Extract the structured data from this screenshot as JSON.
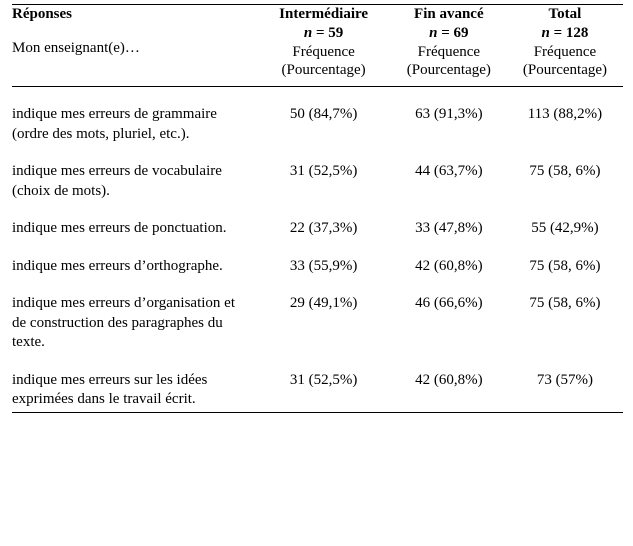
{
  "header": {
    "responses_label": "Réponses",
    "teacher_prefix": "Mon enseignant(e)…",
    "columns": {
      "intermediate": {
        "title": "Intermédiaire",
        "n_prefix": "n",
        "n_value": " = 59",
        "freq_label": "Fréquence",
        "pct_label": "(Pourcentage)"
      },
      "advanced": {
        "title": "Fin avancé",
        "n_prefix": "n",
        "n_value": " = 69",
        "freq_label": "Fréquence",
        "pct_label": "(Pourcentage)"
      },
      "total": {
        "title": "Total",
        "n_prefix": "n",
        "n_value": " = 128",
        "freq_label": "Fréquence",
        "pct_label": "(Pourcentage)"
      }
    }
  },
  "rows": [
    {
      "label": "indique mes erreurs de grammaire (ordre des mots, pluriel, etc.).",
      "intermediate": "50 (84,7%)",
      "advanced": "63 (91,3%)",
      "total": "113 (88,2%)"
    },
    {
      "label": "indique mes erreurs de vocabulaire (choix de mots).",
      "intermediate": "31 (52,5%)",
      "advanced": "44 (63,7%)",
      "total": "75 (58, 6%)"
    },
    {
      "label": "indique mes erreurs de ponctuation.",
      "intermediate": "22 (37,3%)",
      "advanced": "33 (47,8%)",
      "total": "55 (42,9%)"
    },
    {
      "label": "indique mes erreurs d’orthographe.",
      "intermediate": "33 (55,9%)",
      "advanced": "42 (60,8%)",
      "total": "75 (58, 6%)"
    },
    {
      "label": "indique mes erreurs d’organisation et de construction des paragraphes du texte.",
      "intermediate": "29 (49,1%)",
      "advanced": "46 (66,6%)",
      "total": "75 (58, 6%)"
    },
    {
      "label": "indique mes erreurs sur les idées exprimées dans le travail écrit.",
      "intermediate": "31 (52,5%)",
      "advanced": "42 (60,8%)",
      "total": "73 (57%)"
    }
  ]
}
